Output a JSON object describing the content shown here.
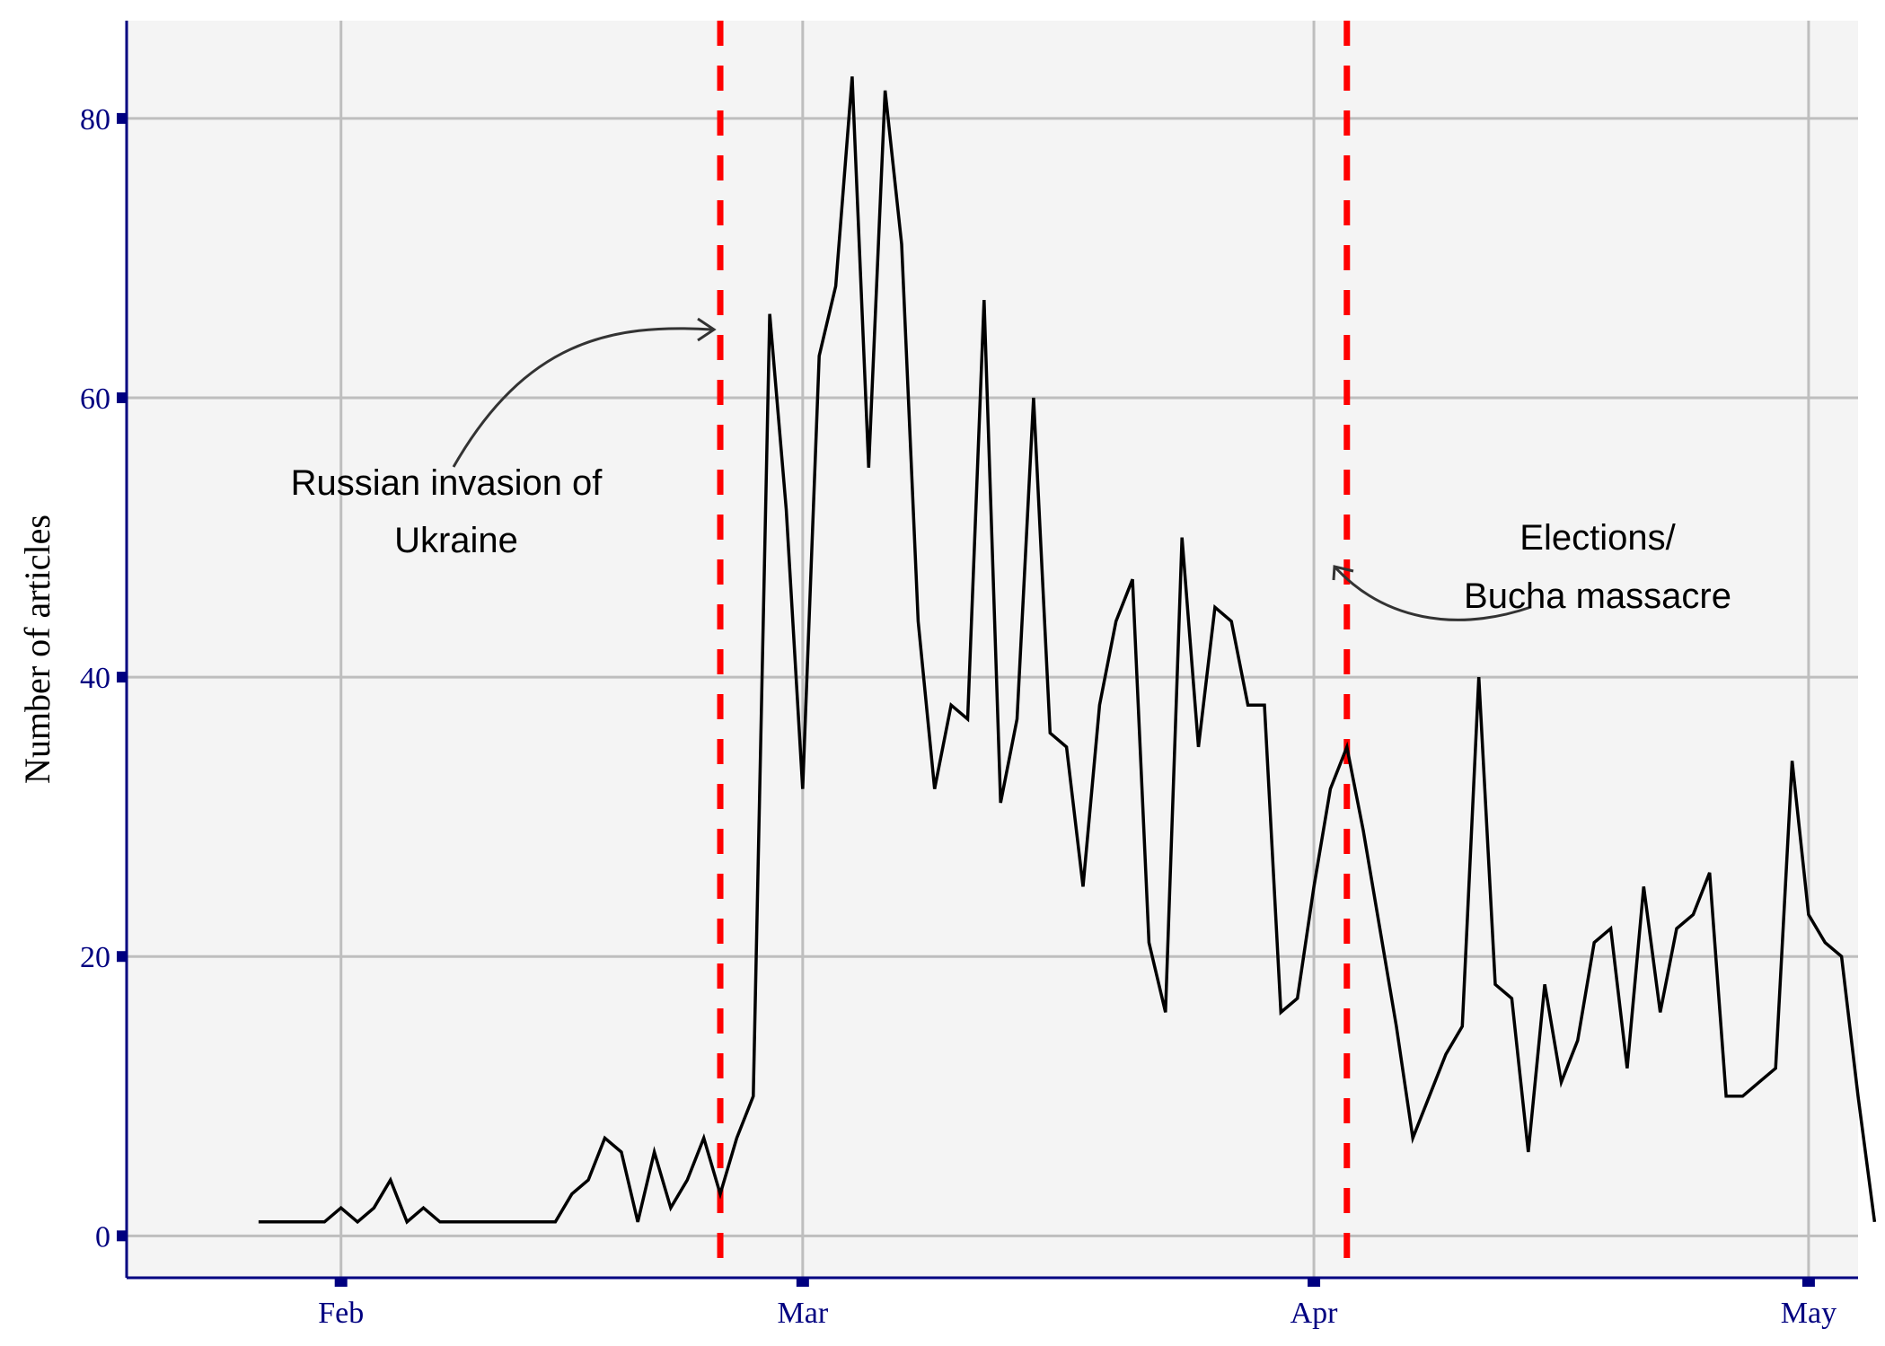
{
  "chart_data": {
    "type": "line",
    "title": "",
    "xlabel": "",
    "ylabel": "Number of articles",
    "x_start": "2022-01-27",
    "x_ticks": [
      {
        "label": "Feb",
        "date": "2022-02-01"
      },
      {
        "label": "Mar",
        "date": "2022-03-01"
      },
      {
        "label": "Apr",
        "date": "2022-04-01"
      },
      {
        "label": "May",
        "date": "2022-05-01"
      }
    ],
    "y_ticks": [
      0,
      20,
      40,
      60,
      80
    ],
    "ylim": [
      -3,
      87
    ],
    "xlim": [
      "2022-01-19",
      "2022-05-04"
    ],
    "grid": true,
    "series": [
      {
        "values": [
          1,
          1,
          1,
          1,
          1,
          2,
          1,
          2,
          4,
          1,
          2,
          1,
          1,
          1,
          1,
          1,
          1,
          1,
          1,
          3,
          4,
          7,
          6,
          1,
          6,
          2,
          4,
          7,
          3,
          7,
          10,
          66,
          52,
          32,
          63,
          68,
          83,
          55,
          82,
          71,
          44,
          32,
          38,
          37,
          67,
          31,
          37,
          60,
          36,
          35,
          25,
          38,
          44,
          47,
          21,
          16,
          50,
          35,
          45,
          44,
          38,
          38,
          16,
          17,
          25,
          32,
          35,
          29,
          22,
          15,
          7,
          10,
          13,
          15,
          40,
          18,
          17,
          6,
          18,
          11,
          14,
          21,
          22,
          12,
          25,
          16,
          22,
          23,
          26,
          10,
          10,
          11,
          12,
          34,
          23,
          21,
          20,
          10,
          1
        ]
      }
    ],
    "vlines": [
      {
        "date": "2022-02-24",
        "color": "#ff0000",
        "style": "dashed"
      },
      {
        "date": "2022-04-03",
        "color": "#ff0000",
        "style": "dashed"
      }
    ],
    "annotations": [
      {
        "lines": [
          "Russian invasion of",
          "Ukraine"
        ],
        "arrow_to": {
          "date": "2022-02-24",
          "value": 65
        }
      },
      {
        "lines": [
          "Elections/",
          "Bucha massacre"
        ],
        "arrow_to": {
          "date": "2022-04-03",
          "value": 48
        }
      }
    ]
  },
  "colors": {
    "panel_background": "#f4f4f4",
    "grid": "#bebebe",
    "axis": "#000080",
    "line": "#000000",
    "vline": "#ff0000",
    "arrow": "#333333"
  }
}
